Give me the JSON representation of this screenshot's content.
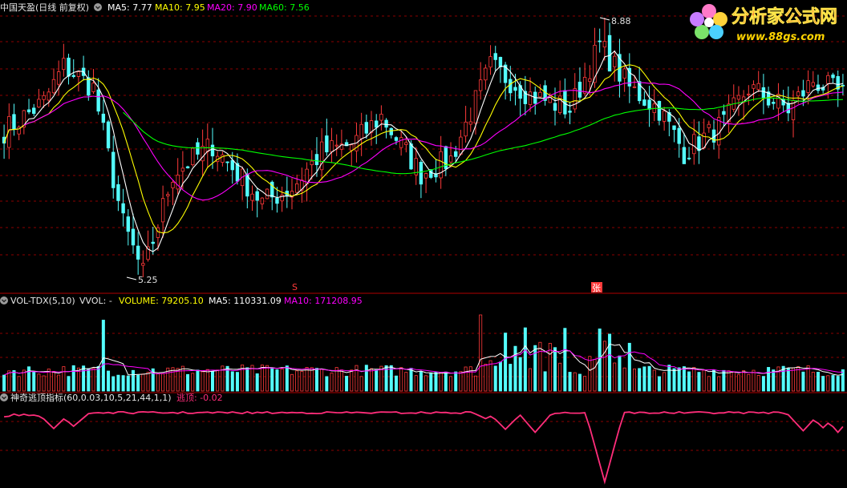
{
  "main_panel": {
    "title": "中国天盈(日线 前复权)",
    "ma5": "MA5: 7.77",
    "ma10": "MA10: 7.95",
    "ma20": "MA20: 7.90",
    "ma60": "MA60: 7.56",
    "high_label": "8.88",
    "low_label": "5.25",
    "marker_s": "S",
    "marker_zhang": "张"
  },
  "volume_panel": {
    "title": "VOL-TDX(5,10)",
    "vvol": "VVOL: -",
    "volume": "VOLUME: 79205.10",
    "ma5": "MA5: 110331.09",
    "ma10": "MA10: 171208.95"
  },
  "indicator_panel": {
    "title": "神奇逃顶指标(60,0.03,10,5,21,44,1,1)",
    "value": "逃顶: -0.02"
  },
  "watermark": {
    "name": "分析家公式网",
    "url": "www.88gs.com"
  },
  "colors": {
    "up": "#ff3a3a",
    "down": "#54ffff",
    "ma5": "#ffffff",
    "ma10": "#ffff00",
    "ma20": "#ff00ff",
    "ma60": "#00ff00",
    "indicator": "#ff2d7a",
    "grid": "#8b0000"
  },
  "chart_data": {
    "type": "candlestick",
    "bars": 170,
    "price_high": 8.88,
    "price_low": 5.25,
    "price_series_keyframes": [
      {
        "bar": 0,
        "close": 7.3
      },
      {
        "bar": 8,
        "close": 7.7
      },
      {
        "bar": 12,
        "close": 8.2
      },
      {
        "bar": 18,
        "close": 7.9
      },
      {
        "bar": 24,
        "close": 6.0
      },
      {
        "bar": 28,
        "close": 5.3
      },
      {
        "bar": 34,
        "close": 6.7
      },
      {
        "bar": 42,
        "close": 7.1
      },
      {
        "bar": 52,
        "close": 6.3
      },
      {
        "bar": 58,
        "close": 6.5
      },
      {
        "bar": 64,
        "close": 7.0
      },
      {
        "bar": 70,
        "close": 7.1
      },
      {
        "bar": 76,
        "close": 7.5
      },
      {
        "bar": 84,
        "close": 6.7
      },
      {
        "bar": 90,
        "close": 6.9
      },
      {
        "bar": 98,
        "close": 8.2
      },
      {
        "bar": 106,
        "close": 7.8
      },
      {
        "bar": 114,
        "close": 7.6
      },
      {
        "bar": 120,
        "close": 8.5
      },
      {
        "bar": 126,
        "close": 7.9
      },
      {
        "bar": 132,
        "close": 7.6
      },
      {
        "bar": 137,
        "close": 7.0
      },
      {
        "bar": 145,
        "close": 7.4
      },
      {
        "bar": 150,
        "close": 7.9
      },
      {
        "bar": 158,
        "close": 7.6
      },
      {
        "bar": 163,
        "close": 8.0
      },
      {
        "bar": 169,
        "close": 7.8
      }
    ],
    "indicator_range": [
      -1.0,
      0.0
    ],
    "indicator_dips": [
      {
        "bar": 10,
        "value": -0.25
      },
      {
        "bar": 14,
        "value": -0.22
      },
      {
        "bar": 97,
        "value": -0.12
      },
      {
        "bar": 101,
        "value": -0.26
      },
      {
        "bar": 107,
        "value": -0.3
      },
      {
        "bar": 121,
        "value": -0.95
      },
      {
        "bar": 161,
        "value": -0.28
      },
      {
        "bar": 165,
        "value": -0.24
      },
      {
        "bar": 168,
        "value": -0.3
      }
    ]
  }
}
